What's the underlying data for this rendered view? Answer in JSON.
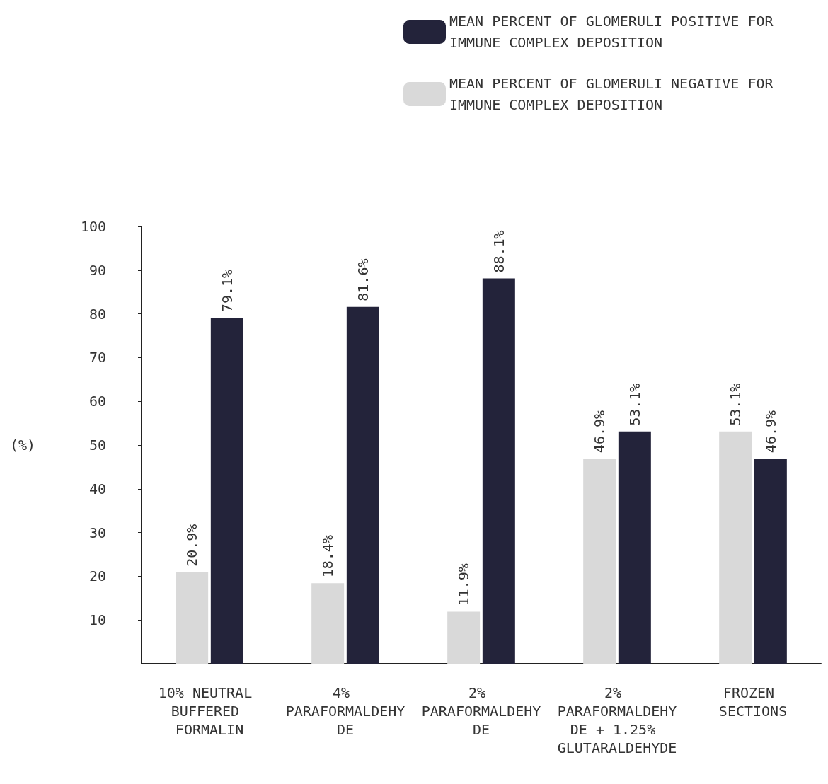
{
  "chart_data": {
    "type": "bar",
    "ylabel": "(%)",
    "categories": [
      "10% NEUTRAL BUFFERED FORMALIN",
      "4% PARAFORMALDEHYDE",
      "2% PARAFORMALDEHYDE",
      "2% PARAFORMALDEHYDE + 1.25% GLUTARALDEHYDE",
      "FROZEN SECTIONS"
    ],
    "series": [
      {
        "name": "MEAN PERCENT OF GLOMERULI NEGATIVE FOR IMMUNE COMPLEX DEPOSITION",
        "color": "#d9d9d9",
        "values": [
          20.9,
          18.4,
          11.9,
          46.9,
          53.1
        ],
        "value_labels": [
          "20.9%",
          "18.4%",
          "11.9%",
          "46.9%",
          "53.1%"
        ]
      },
      {
        "name": "MEAN PERCENT OF GLOMERULI POSITIVE FOR IMMUNE COMPLEX DEPOSITION",
        "color": "#23233a",
        "values": [
          79.1,
          81.6,
          88.1,
          53.1,
          46.9
        ],
        "value_labels": [
          "79.1%",
          "81.6%",
          "88.1%",
          "53.1%",
          "46.9%"
        ]
      }
    ],
    "ylim": [
      0,
      100
    ],
    "yticks": [
      10,
      20,
      30,
      40,
      50,
      60,
      70,
      80,
      90,
      100
    ],
    "grid": false,
    "legend": "top right"
  }
}
